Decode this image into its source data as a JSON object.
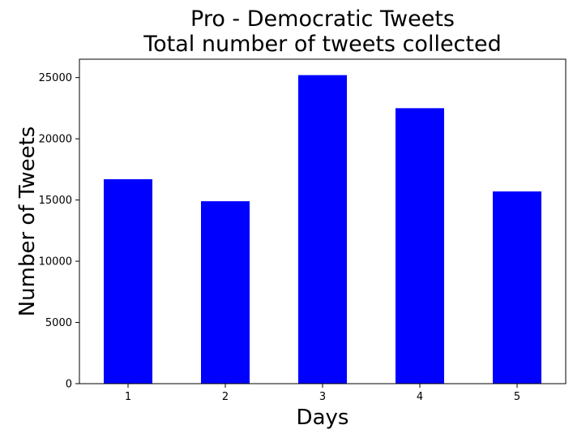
{
  "chart_data": {
    "type": "bar",
    "title": "Pro - Democratic Tweets",
    "subtitle": "Total number of tweets collected",
    "xlabel": "Days",
    "ylabel": "Number of Tweets",
    "categories": [
      "1",
      "2",
      "3",
      "4",
      "5"
    ],
    "values": [
      16700,
      14900,
      25200,
      22500,
      15700
    ],
    "ylim": [
      0,
      26500
    ],
    "yticks": [
      0,
      5000,
      10000,
      15000,
      20000,
      25000
    ],
    "bar_color": "#0000ff",
    "grid": false,
    "legend": "none"
  }
}
